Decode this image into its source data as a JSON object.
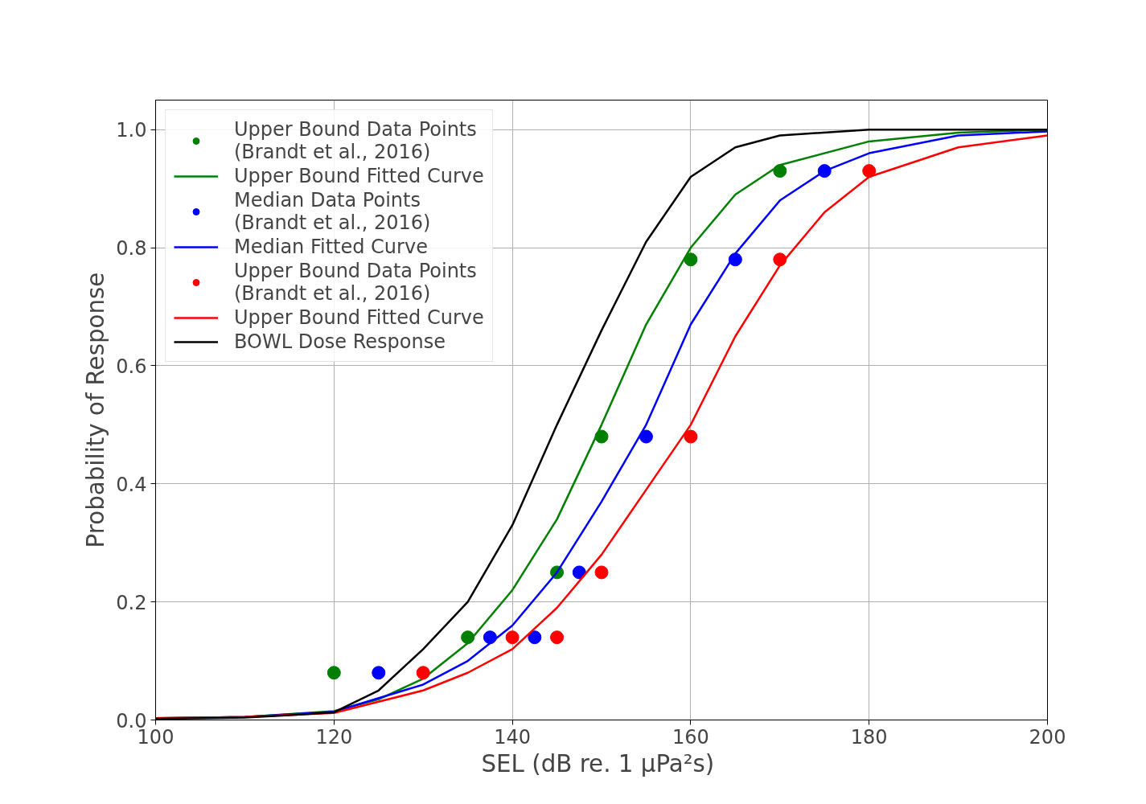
{
  "chart_data": {
    "type": "line",
    "xlabel": "SEL (dB re.  1 µPa²s)",
    "ylabel": "Probability of Response",
    "xlim": [
      100,
      200
    ],
    "ylim": [
      0,
      1.05
    ],
    "xticks": [
      100,
      120,
      140,
      160,
      180,
      200
    ],
    "yticks": [
      {
        "value": 0,
        "label": "0.0"
      },
      {
        "value": 0.2,
        "label": "0.2"
      },
      {
        "value": 0.4,
        "label": "0.4"
      },
      {
        "value": 0.6,
        "label": "0.6"
      },
      {
        "value": 0.8,
        "label": "0.8"
      },
      {
        "value": 1.0,
        "label": "1.0"
      }
    ],
    "grid": true,
    "legend": "top left",
    "series": [
      {
        "name": "Upper Bound Data Points\n(Brandt et al., 2016)",
        "type": "scatter",
        "marker": "circle",
        "color": "#008000",
        "x": [
          120,
          135,
          145,
          150,
          160,
          170
        ],
        "values": [
          0.08,
          0.14,
          0.25,
          0.48,
          0.78,
          0.93
        ]
      },
      {
        "name": "Upper Bound Fitted Curve",
        "color": "#008000",
        "x": [
          100,
          110,
          120,
          125,
          130,
          135,
          140,
          145,
          150,
          155,
          160,
          165,
          170,
          180,
          190,
          200
        ],
        "values": [
          0.003,
          0.005,
          0.015,
          0.035,
          0.07,
          0.13,
          0.22,
          0.34,
          0.5,
          0.67,
          0.8,
          0.89,
          0.94,
          0.98,
          0.995,
          1.0
        ]
      },
      {
        "name": "Median Data Points\n(Brandt et al., 2016)",
        "type": "scatter",
        "marker": "circle",
        "color": "#0000ff",
        "x": [
          125,
          137.5,
          142.5,
          147.5,
          155,
          165,
          175
        ],
        "values": [
          0.08,
          0.14,
          0.14,
          0.25,
          0.48,
          0.78,
          0.93
        ]
      },
      {
        "name": "Median Fitted Curve",
        "color": "#0000ff",
        "x": [
          100,
          110,
          120,
          130,
          135,
          140,
          145,
          150,
          155,
          160,
          165,
          170,
          175,
          180,
          190,
          200
        ],
        "values": [
          0.003,
          0.005,
          0.014,
          0.06,
          0.1,
          0.16,
          0.25,
          0.37,
          0.5,
          0.67,
          0.79,
          0.88,
          0.93,
          0.96,
          0.99,
          0.997
        ]
      },
      {
        "name": "Upper Bound Data Points\n(Brandt et al., 2016)",
        "type": "scatter",
        "marker": "circle",
        "color": "#ff0000",
        "x": [
          130,
          140,
          145,
          150,
          160,
          170,
          180
        ],
        "values": [
          0.08,
          0.14,
          0.14,
          0.25,
          0.48,
          0.78,
          0.93
        ]
      },
      {
        "name": "Upper Bound Fitted Curve",
        "color": "#ff0000",
        "x": [
          100,
          110,
          120,
          130,
          135,
          140,
          145,
          150,
          155,
          160,
          165,
          170,
          175,
          180,
          190,
          200
        ],
        "values": [
          0.003,
          0.005,
          0.012,
          0.05,
          0.08,
          0.12,
          0.19,
          0.28,
          0.39,
          0.5,
          0.65,
          0.77,
          0.86,
          0.92,
          0.97,
          0.99
        ]
      },
      {
        "name": "BOWL Dose Response",
        "color": "#000000",
        "x": [
          100,
          110,
          115,
          120,
          125,
          130,
          135,
          140,
          145,
          150,
          155,
          160,
          165,
          170,
          180,
          200
        ],
        "values": [
          0.002,
          0.004,
          0.008,
          0.013,
          0.05,
          0.12,
          0.2,
          0.33,
          0.5,
          0.66,
          0.81,
          0.92,
          0.97,
          0.99,
          1.0,
          1.0
        ]
      }
    ]
  }
}
